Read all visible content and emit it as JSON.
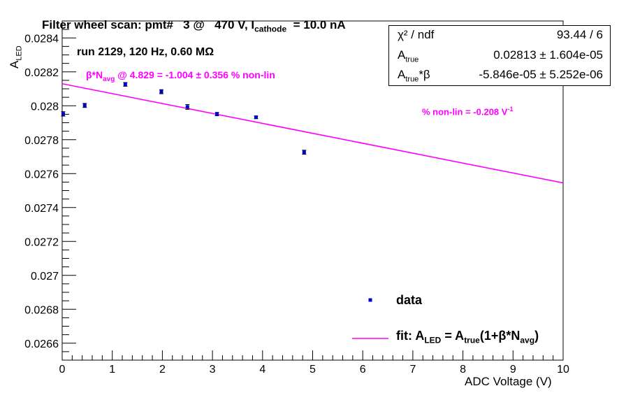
{
  "title": {
    "prefix": "Filter wheel scan: pmt#   3 @   470 V, I",
    "sub": "cathode",
    "suffix": "  = 10.0 nA"
  },
  "run_label": "run 2129, 120 Hz, 0.60 MΩ",
  "annotation_beta": {
    "prefix": "β*N",
    "sub": "avg",
    "suffix": " @ 4.829 = -1.004 ± 0.356 % non-lin"
  },
  "annotation_nonlin": {
    "text": "% non-lin = -0.208 V",
    "sup": "-1"
  },
  "stats_box": {
    "chi2_label": "χ² / ndf",
    "chi2_value": "93.44 / 6",
    "atrue_label": "A",
    "atrue_sub": "true",
    "atrue_value": "0.02813 ± 1.604e-05",
    "atrue_beta_label_suffix": "*β",
    "atrue_beta_value": "-5.846e-05 ± 5.252e-06"
  },
  "legend": {
    "data_label": "data",
    "fit_label": {
      "p1": "fit: A",
      "s1": "LED",
      "p2": " = A",
      "s2": "true",
      "p3": "(1+β*N",
      "s3": "avg",
      "p4": ")"
    }
  },
  "colors": {
    "data": "#0000cc",
    "fit": "#ff00ff",
    "axis": "#000000"
  },
  "chart_data": {
    "type": "scatter",
    "xlabel": "ADC Voltage (V)",
    "ylabel": {
      "main": "A",
      "sub": "LED"
    },
    "xlim": [
      0,
      10
    ],
    "ylim": [
      0.0265,
      0.0285
    ],
    "x_ticks": [
      0,
      1,
      2,
      3,
      4,
      5,
      6,
      7,
      8,
      9,
      10
    ],
    "y_ticks": [
      0.0266,
      0.0268,
      0.027,
      0.0272,
      0.0274,
      0.0276,
      0.0278,
      0.028,
      0.0282,
      0.0284
    ],
    "y_tick_labels": [
      "0.0266",
      "0.0268",
      "0.027",
      "0.0272",
      "0.0274",
      "0.0276",
      "0.0278",
      "0.028",
      "0.0282",
      "0.0284"
    ],
    "grid": false,
    "series": [
      {
        "name": "data",
        "kind": "points_with_errors",
        "x": [
          0.02,
          0.45,
          1.26,
          1.98,
          2.5,
          3.09,
          3.87,
          4.83
        ],
        "y": [
          0.027952,
          0.028002,
          0.028126,
          0.028083,
          0.027993,
          0.027951,
          0.027932,
          0.027726
        ],
        "yerr": [
          1.3e-05,
          1.2e-05,
          1.1e-05,
          1.2e-05,
          1.4e-05,
          1e-05,
          8e-06,
          1.2e-05
        ]
      },
      {
        "name": "fit",
        "kind": "line",
        "x": [
          0,
          10
        ],
        "y": [
          0.02813,
          0.027545
        ]
      }
    ]
  }
}
